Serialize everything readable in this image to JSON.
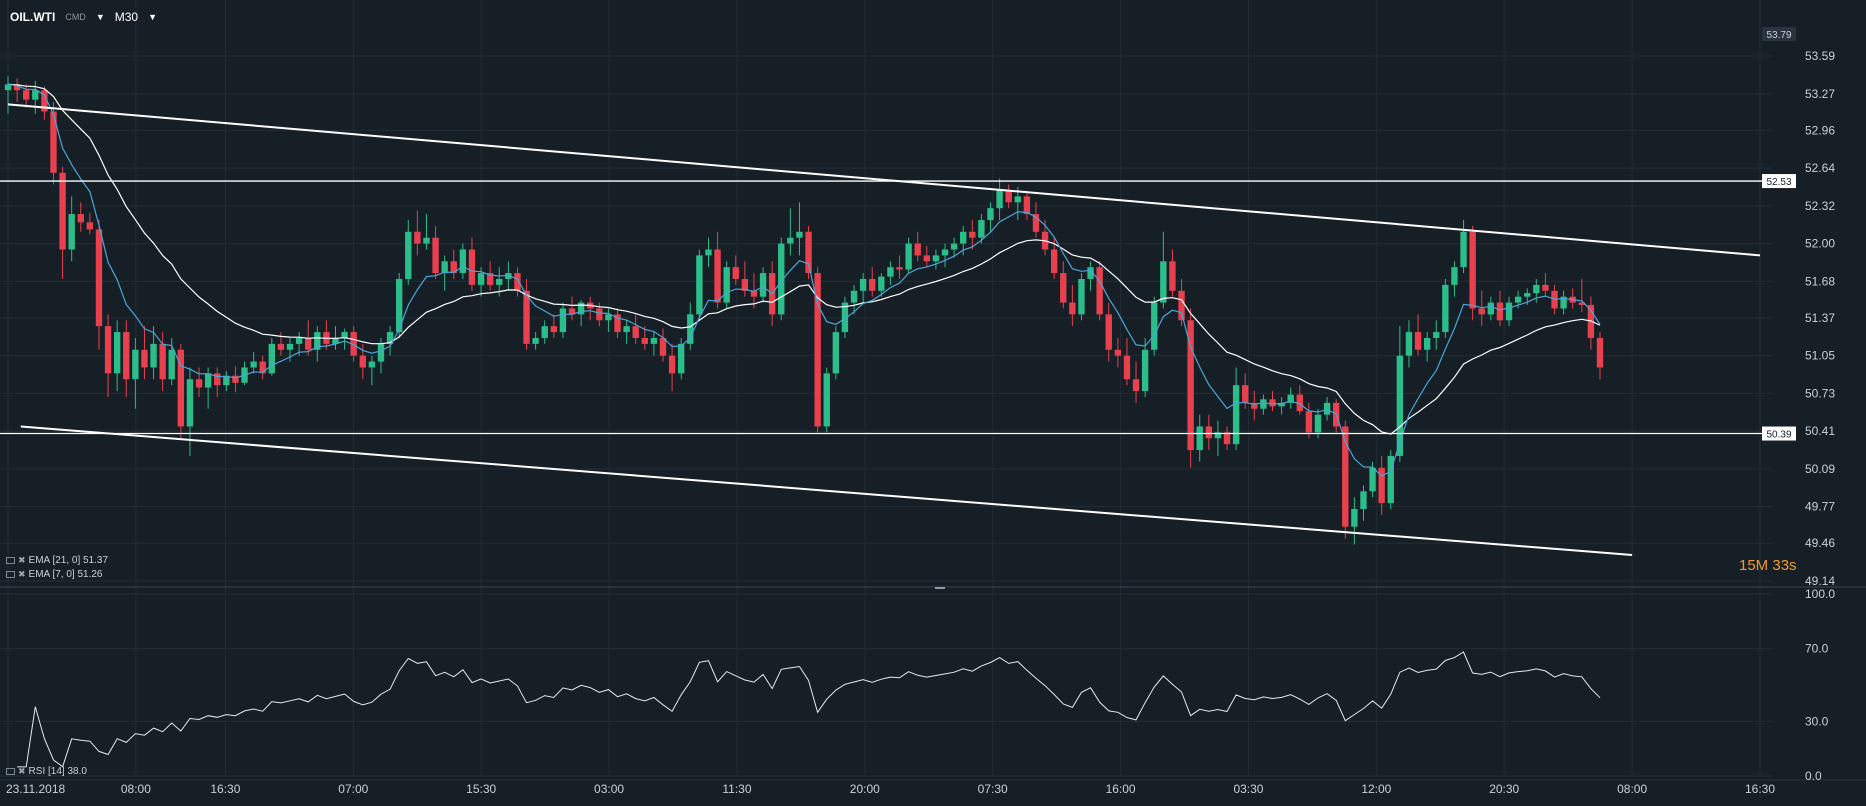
{
  "toolbar": {
    "symbol": "OIL.WTI",
    "mode": "CMD",
    "timeframe": "M30"
  },
  "indicators": {
    "ema21": "EMA [21, 0] 51.37",
    "ema7": "EMA [7, 0] 51.26",
    "rsi": "RSI [14] 38.0"
  },
  "timer": "15M 33s",
  "colors": {
    "background": "#171f26",
    "bull": "#2bbd8a",
    "bear": "#e8404f",
    "ema21": "#ffffff",
    "ema7": "#4aa6d9",
    "timer": "#f29b30"
  },
  "chart_data": [
    {
      "type": "candlestick",
      "title": "OIL.WTI M30",
      "xlabel": "",
      "ylabel": "",
      "ylim": [
        49.14,
        53.79
      ],
      "grid": true,
      "price_ticks": [
        53.59,
        53.27,
        52.96,
        52.64,
        52.32,
        52.0,
        51.68,
        51.37,
        51.05,
        50.73,
        50.41,
        50.09,
        49.77,
        49.46,
        49.14
      ],
      "top_label": "53.79",
      "x_tick_labels": [
        "23.11.2018",
        "08:00",
        "16:30",
        "07:00",
        "15:30",
        "03:00",
        "11:30",
        "20:00",
        "07:30",
        "16:00",
        "03:30",
        "12:00",
        "20:30",
        "08:00",
        "16:30"
      ],
      "x_tick_positions": [
        0,
        10,
        17,
        27,
        37,
        47,
        57,
        67,
        77,
        87,
        97,
        107,
        117,
        127,
        137
      ],
      "horizontal_levels": [
        52.53,
        50.39
      ],
      "trendlines": [
        {
          "from": [
            0,
            53.18
          ],
          "to": [
            137,
            51.9
          ]
        },
        {
          "from": [
            1,
            50.45
          ],
          "to": [
            127,
            49.36
          ]
        }
      ],
      "ohlc": [
        [
          53.3,
          53.42,
          53.1,
          53.35
        ],
        [
          53.35,
          53.4,
          53.2,
          53.3
        ],
        [
          53.3,
          53.35,
          53.15,
          53.22
        ],
        [
          53.22,
          53.38,
          53.1,
          53.3
        ],
        [
          53.3,
          53.33,
          53.05,
          53.12
        ],
        [
          53.12,
          53.2,
          52.5,
          52.6
        ],
        [
          52.6,
          52.65,
          51.7,
          51.95
        ],
        [
          51.95,
          52.4,
          51.85,
          52.25
        ],
        [
          52.25,
          52.35,
          52.1,
          52.18
        ],
        [
          52.18,
          52.26,
          52.08,
          52.12
        ],
        [
          52.12,
          52.2,
          51.1,
          51.3
        ],
        [
          51.3,
          51.4,
          50.7,
          50.9
        ],
        [
          50.9,
          51.35,
          50.75,
          51.25
        ],
        [
          51.25,
          51.35,
          50.7,
          50.85
        ],
        [
          50.85,
          51.2,
          50.6,
          51.1
        ],
        [
          51.1,
          51.3,
          50.85,
          50.95
        ],
        [
          50.95,
          51.3,
          50.85,
          51.15
        ],
        [
          51.15,
          51.25,
          50.75,
          50.85
        ],
        [
          50.85,
          51.2,
          50.8,
          51.1
        ],
        [
          51.1,
          51.15,
          50.35,
          50.45
        ],
        [
          50.45,
          50.95,
          50.2,
          50.85
        ],
        [
          50.85,
          50.95,
          50.7,
          50.78
        ],
        [
          50.78,
          50.95,
          50.6,
          50.9
        ],
        [
          50.9,
          50.95,
          50.7,
          50.8
        ],
        [
          50.8,
          50.92,
          50.75,
          50.88
        ],
        [
          50.88,
          50.96,
          50.74,
          50.82
        ],
        [
          50.82,
          51.0,
          50.8,
          50.95
        ],
        [
          50.95,
          51.08,
          50.9,
          51.0
        ],
        [
          51.0,
          51.05,
          50.85,
          50.9
        ],
        [
          50.9,
          51.2,
          50.88,
          51.15
        ],
        [
          51.15,
          51.25,
          51.05,
          51.1
        ],
        [
          51.1,
          51.2,
          51.0,
          51.15
        ],
        [
          51.15,
          51.25,
          51.05,
          51.2
        ],
        [
          51.2,
          51.35,
          51.05,
          51.1
        ],
        [
          51.1,
          51.3,
          51.0,
          51.25
        ],
        [
          51.25,
          51.35,
          51.1,
          51.15
        ],
        [
          51.15,
          51.3,
          51.1,
          51.2
        ],
        [
          51.2,
          51.28,
          51.1,
          51.25
        ],
        [
          51.25,
          51.3,
          51.0,
          51.05
        ],
        [
          51.05,
          51.15,
          50.85,
          50.95
        ],
        [
          50.95,
          51.05,
          50.8,
          51.0
        ],
        [
          51.0,
          51.2,
          50.9,
          51.15
        ],
        [
          51.15,
          51.3,
          51.05,
          51.25
        ],
        [
          51.25,
          51.75,
          51.2,
          51.7
        ],
        [
          51.7,
          52.2,
          51.65,
          52.1
        ],
        [
          52.1,
          52.28,
          51.9,
          52.0
        ],
        [
          52.0,
          52.25,
          51.95,
          52.05
        ],
        [
          52.05,
          52.15,
          51.7,
          51.75
        ],
        [
          51.75,
          51.9,
          51.6,
          51.85
        ],
        [
          51.85,
          51.95,
          51.7,
          51.75
        ],
        [
          51.75,
          52.0,
          51.7,
          51.95
        ],
        [
          51.95,
          52.05,
          51.6,
          51.65
        ],
        [
          51.65,
          51.8,
          51.55,
          51.75
        ],
        [
          51.75,
          51.85,
          51.6,
          51.65
        ],
        [
          51.65,
          51.8,
          51.55,
          51.7
        ],
        [
          51.7,
          51.85,
          51.6,
          51.75
        ],
        [
          51.75,
          51.8,
          51.55,
          51.6
        ],
        [
          51.6,
          51.7,
          51.1,
          51.15
        ],
        [
          51.15,
          51.25,
          51.1,
          51.2
        ],
        [
          51.2,
          51.35,
          51.15,
          51.3
        ],
        [
          51.3,
          51.4,
          51.2,
          51.25
        ],
        [
          51.25,
          51.5,
          51.2,
          51.45
        ],
        [
          51.45,
          51.55,
          51.35,
          51.4
        ],
        [
          51.4,
          51.52,
          51.3,
          51.5
        ],
        [
          51.5,
          51.55,
          51.35,
          51.45
        ],
        [
          51.45,
          51.5,
          51.3,
          51.35
        ],
        [
          51.35,
          51.45,
          51.25,
          51.4
        ],
        [
          51.4,
          51.45,
          51.2,
          51.25
        ],
        [
          51.25,
          51.35,
          51.15,
          51.3
        ],
        [
          51.3,
          51.4,
          51.15,
          51.2
        ],
        [
          51.2,
          51.3,
          51.1,
          51.15
        ],
        [
          51.15,
          51.25,
          51.05,
          51.2
        ],
        [
          51.2,
          51.28,
          51.0,
          51.05
        ],
        [
          51.05,
          51.15,
          50.75,
          50.9
        ],
        [
          50.9,
          51.2,
          50.85,
          51.15
        ],
        [
          51.15,
          51.5,
          51.1,
          51.4
        ],
        [
          51.4,
          51.95,
          51.35,
          51.9
        ],
        [
          51.9,
          52.05,
          51.8,
          51.95
        ],
        [
          51.95,
          52.1,
          51.45,
          51.5
        ],
        [
          51.5,
          51.85,
          51.45,
          51.8
        ],
        [
          51.8,
          51.9,
          51.65,
          51.7
        ],
        [
          51.7,
          51.85,
          51.55,
          51.6
        ],
        [
          51.6,
          51.75,
          51.45,
          51.55
        ],
        [
          51.55,
          51.8,
          51.5,
          51.75
        ],
        [
          51.75,
          51.85,
          51.3,
          51.4
        ],
        [
          51.4,
          52.05,
          51.35,
          52.0
        ],
        [
          52.0,
          52.3,
          51.9,
          52.05
        ],
        [
          52.05,
          52.35,
          51.9,
          52.1
        ],
        [
          52.1,
          52.15,
          51.7,
          51.75
        ],
        [
          51.75,
          51.8,
          50.4,
          50.45
        ]
      ],
      "ohlc_more": [
        [
          50.45,
          50.95,
          50.4,
          50.9
        ],
        [
          50.9,
          51.3,
          50.85,
          51.25
        ],
        [
          51.25,
          51.55,
          51.2,
          51.5
        ],
        [
          51.5,
          51.65,
          51.4,
          51.6
        ],
        [
          51.6,
          51.75,
          51.5,
          51.7
        ],
        [
          51.7,
          51.8,
          51.55,
          51.6
        ],
        [
          51.6,
          51.75,
          51.55,
          51.72
        ],
        [
          51.72,
          51.85,
          51.65,
          51.8
        ],
        [
          51.8,
          51.9,
          51.7,
          51.78
        ],
        [
          51.78,
          52.05,
          51.75,
          52.0
        ],
        [
          52.0,
          52.1,
          51.85,
          51.9
        ],
        [
          51.9,
          51.98,
          51.8,
          51.85
        ],
        [
          51.85,
          51.95,
          51.78,
          51.9
        ],
        [
          51.9,
          52.0,
          51.8,
          51.95
        ],
        [
          51.95,
          52.05,
          51.88,
          52.0
        ],
        [
          52.0,
          52.15,
          51.9,
          52.1
        ],
        [
          52.1,
          52.2,
          51.95,
          52.05
        ],
        [
          52.05,
          52.25,
          52.0,
          52.2
        ],
        [
          52.2,
          52.35,
          52.1,
          52.3
        ],
        [
          52.3,
          52.55,
          52.2,
          52.45
        ],
        [
          52.45,
          52.5,
          52.3,
          52.35
        ],
        [
          52.35,
          52.48,
          52.2,
          52.4
        ],
        [
          52.4,
          52.45,
          52.2,
          52.25
        ],
        [
          52.25,
          52.35,
          52.05,
          52.1
        ],
        [
          52.1,
          52.2,
          51.9,
          51.95
        ],
        [
          51.95,
          52.05,
          51.7,
          51.75
        ],
        [
          51.75,
          51.85,
          51.45,
          51.5
        ],
        [
          51.5,
          51.65,
          51.3,
          51.4
        ],
        [
          51.4,
          51.75,
          51.35,
          51.7
        ],
        [
          51.7,
          51.85,
          51.6,
          51.8
        ],
        [
          51.8,
          51.85,
          51.35,
          51.4
        ],
        [
          51.4,
          51.5,
          51.0,
          51.1
        ],
        [
          51.1,
          51.2,
          50.95,
          51.05
        ],
        [
          51.05,
          51.2,
          50.8,
          50.85
        ],
        [
          50.85,
          51.0,
          50.65,
          50.75
        ],
        [
          50.75,
          51.2,
          50.7,
          51.1
        ],
        [
          51.1,
          51.55,
          51.05,
          51.5
        ],
        [
          51.5,
          52.1,
          51.45,
          51.85
        ],
        [
          51.85,
          51.95,
          51.55,
          51.6
        ],
        [
          51.6,
          51.7,
          51.3,
          51.35
        ]
      ],
      "ohlc_tail": [
        [
          51.35,
          51.45,
          50.1,
          50.25
        ],
        [
          50.25,
          50.55,
          50.15,
          50.45
        ],
        [
          50.45,
          50.55,
          50.25,
          50.35
        ],
        [
          50.35,
          50.5,
          50.2,
          50.4
        ],
        [
          50.4,
          50.45,
          50.25,
          50.3
        ],
        [
          50.3,
          50.95,
          50.25,
          50.8
        ],
        [
          50.8,
          50.9,
          50.6,
          50.65
        ],
        [
          50.65,
          50.75,
          50.5,
          50.6
        ],
        [
          50.6,
          50.72,
          50.55,
          50.68
        ],
        [
          50.68,
          50.75,
          50.58,
          50.62
        ],
        [
          50.62,
          50.7,
          50.55,
          50.65
        ],
        [
          50.65,
          50.78,
          50.6,
          50.72
        ],
        [
          50.72,
          50.8,
          50.55,
          50.58
        ],
        [
          50.58,
          50.65,
          50.35,
          50.4
        ],
        [
          50.4,
          50.6,
          50.35,
          50.55
        ],
        [
          50.55,
          50.7,
          50.5,
          50.65
        ],
        [
          50.65,
          50.68,
          50.4,
          50.45
        ],
        [
          50.45,
          50.5,
          49.5,
          49.6
        ],
        [
          49.6,
          49.85,
          49.45,
          49.75
        ],
        [
          49.75,
          49.95,
          49.65,
          49.9
        ],
        [
          49.9,
          50.15,
          49.85,
          50.1
        ],
        [
          50.1,
          50.2,
          49.7,
          49.8
        ],
        [
          49.8,
          50.25,
          49.75,
          50.2
        ],
        [
          50.2,
          51.3,
          50.15,
          51.05
        ],
        [
          51.05,
          51.35,
          50.95,
          51.25
        ],
        [
          51.25,
          51.4,
          51.05,
          51.1
        ],
        [
          51.1,
          51.25,
          51.0,
          51.2
        ],
        [
          51.2,
          51.35,
          51.1,
          51.25
        ],
        [
          51.25,
          51.7,
          51.2,
          51.65
        ],
        [
          51.65,
          51.85,
          51.55,
          51.8
        ],
        [
          51.8,
          52.2,
          51.75,
          52.1
        ],
        [
          52.1,
          52.15,
          51.35,
          51.45
        ],
        [
          51.45,
          51.6,
          51.3,
          51.4
        ],
        [
          51.4,
          51.55,
          51.35,
          51.5
        ],
        [
          51.5,
          51.6,
          51.3,
          51.35
        ],
        [
          51.35,
          51.55,
          51.3,
          51.5
        ],
        [
          51.5,
          51.6,
          51.45,
          51.55
        ],
        [
          51.55,
          51.62,
          51.48,
          51.58
        ],
        [
          51.58,
          51.7,
          51.5,
          51.65
        ],
        [
          51.65,
          51.75,
          51.55,
          51.6
        ],
        [
          51.6,
          51.65,
          51.4,
          51.45
        ],
        [
          51.45,
          51.6,
          51.4,
          51.55
        ],
        [
          51.55,
          51.62,
          51.45,
          51.5
        ],
        [
          51.5,
          51.7,
          51.42,
          51.48
        ],
        [
          51.48,
          51.55,
          51.1,
          51.2
        ],
        [
          51.2,
          51.25,
          50.85,
          50.95
        ]
      ]
    },
    {
      "type": "line",
      "title": "RSI [14]",
      "ylim": [
        0,
        100
      ],
      "y_ticks": [
        100.0,
        70.0,
        30.0,
        0.0
      ],
      "last_value": 38.0
    }
  ]
}
